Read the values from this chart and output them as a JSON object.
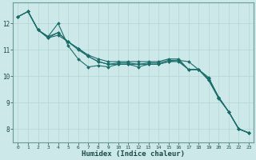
{
  "xlabel": "Humidex (Indice chaleur)",
  "ylabel": "",
  "xlim": [
    -0.5,
    23.5
  ],
  "ylim": [
    7.5,
    12.8
  ],
  "xticks": [
    0,
    1,
    2,
    3,
    4,
    5,
    6,
    7,
    8,
    9,
    10,
    11,
    12,
    13,
    14,
    15,
    16,
    17,
    18,
    19,
    20,
    21,
    22,
    23
  ],
  "yticks": [
    8,
    9,
    10,
    11,
    12
  ],
  "background_color": "#cce8e8",
  "grid_color": "#b8d8d8",
  "line_color": "#1a6e6a",
  "lines": [
    {
      "x": [
        0,
        1,
        2,
        3,
        4,
        5,
        6,
        7,
        8,
        9,
        10,
        11,
        12,
        13,
        14,
        15,
        16,
        17,
        18,
        19,
        20,
        21,
        22,
        23
      ],
      "y": [
        12.25,
        12.45,
        11.75,
        11.5,
        12.0,
        11.15,
        10.65,
        10.35,
        10.4,
        10.35,
        10.45,
        10.45,
        10.35,
        10.45,
        10.45,
        10.55,
        10.6,
        10.55,
        10.25,
        9.85,
        9.15,
        8.65,
        8.0,
        7.85
      ]
    },
    {
      "x": [
        0,
        1,
        2,
        3,
        4,
        5,
        6,
        7,
        8,
        9,
        10,
        11,
        12,
        13,
        14,
        15,
        16,
        17,
        18,
        19,
        20,
        21,
        22,
        23
      ],
      "y": [
        12.25,
        12.45,
        11.75,
        11.5,
        11.65,
        11.3,
        11.05,
        10.8,
        10.65,
        10.55,
        10.55,
        10.55,
        10.55,
        10.55,
        10.55,
        10.65,
        10.65,
        10.25,
        10.25,
        9.95,
        9.2,
        8.65,
        8.0,
        7.85
      ]
    },
    {
      "x": [
        1,
        2,
        3,
        4,
        5,
        6,
        7,
        8,
        9,
        10,
        11,
        12,
        13,
        14,
        15,
        16,
        17,
        18,
        19,
        20,
        21,
        22,
        23
      ],
      "y": [
        12.45,
        11.75,
        11.45,
        11.55,
        11.3,
        11.05,
        10.75,
        10.55,
        10.45,
        10.45,
        10.45,
        10.45,
        10.45,
        10.45,
        10.55,
        10.55,
        10.25,
        10.25,
        9.85,
        9.2,
        8.65,
        8.0,
        7.85
      ]
    },
    {
      "x": [
        0,
        1,
        2,
        3,
        4,
        5,
        6,
        7,
        8,
        9,
        10,
        11,
        12,
        13,
        14,
        15,
        16,
        17,
        18,
        19,
        20,
        21,
        22,
        23
      ],
      "y": [
        12.25,
        12.45,
        11.75,
        11.45,
        11.65,
        11.3,
        11.0,
        10.75,
        10.55,
        10.45,
        10.5,
        10.5,
        10.45,
        10.5,
        10.5,
        10.6,
        10.6,
        10.25,
        10.25,
        9.9,
        9.2,
        8.65,
        8.0,
        7.85
      ]
    }
  ]
}
